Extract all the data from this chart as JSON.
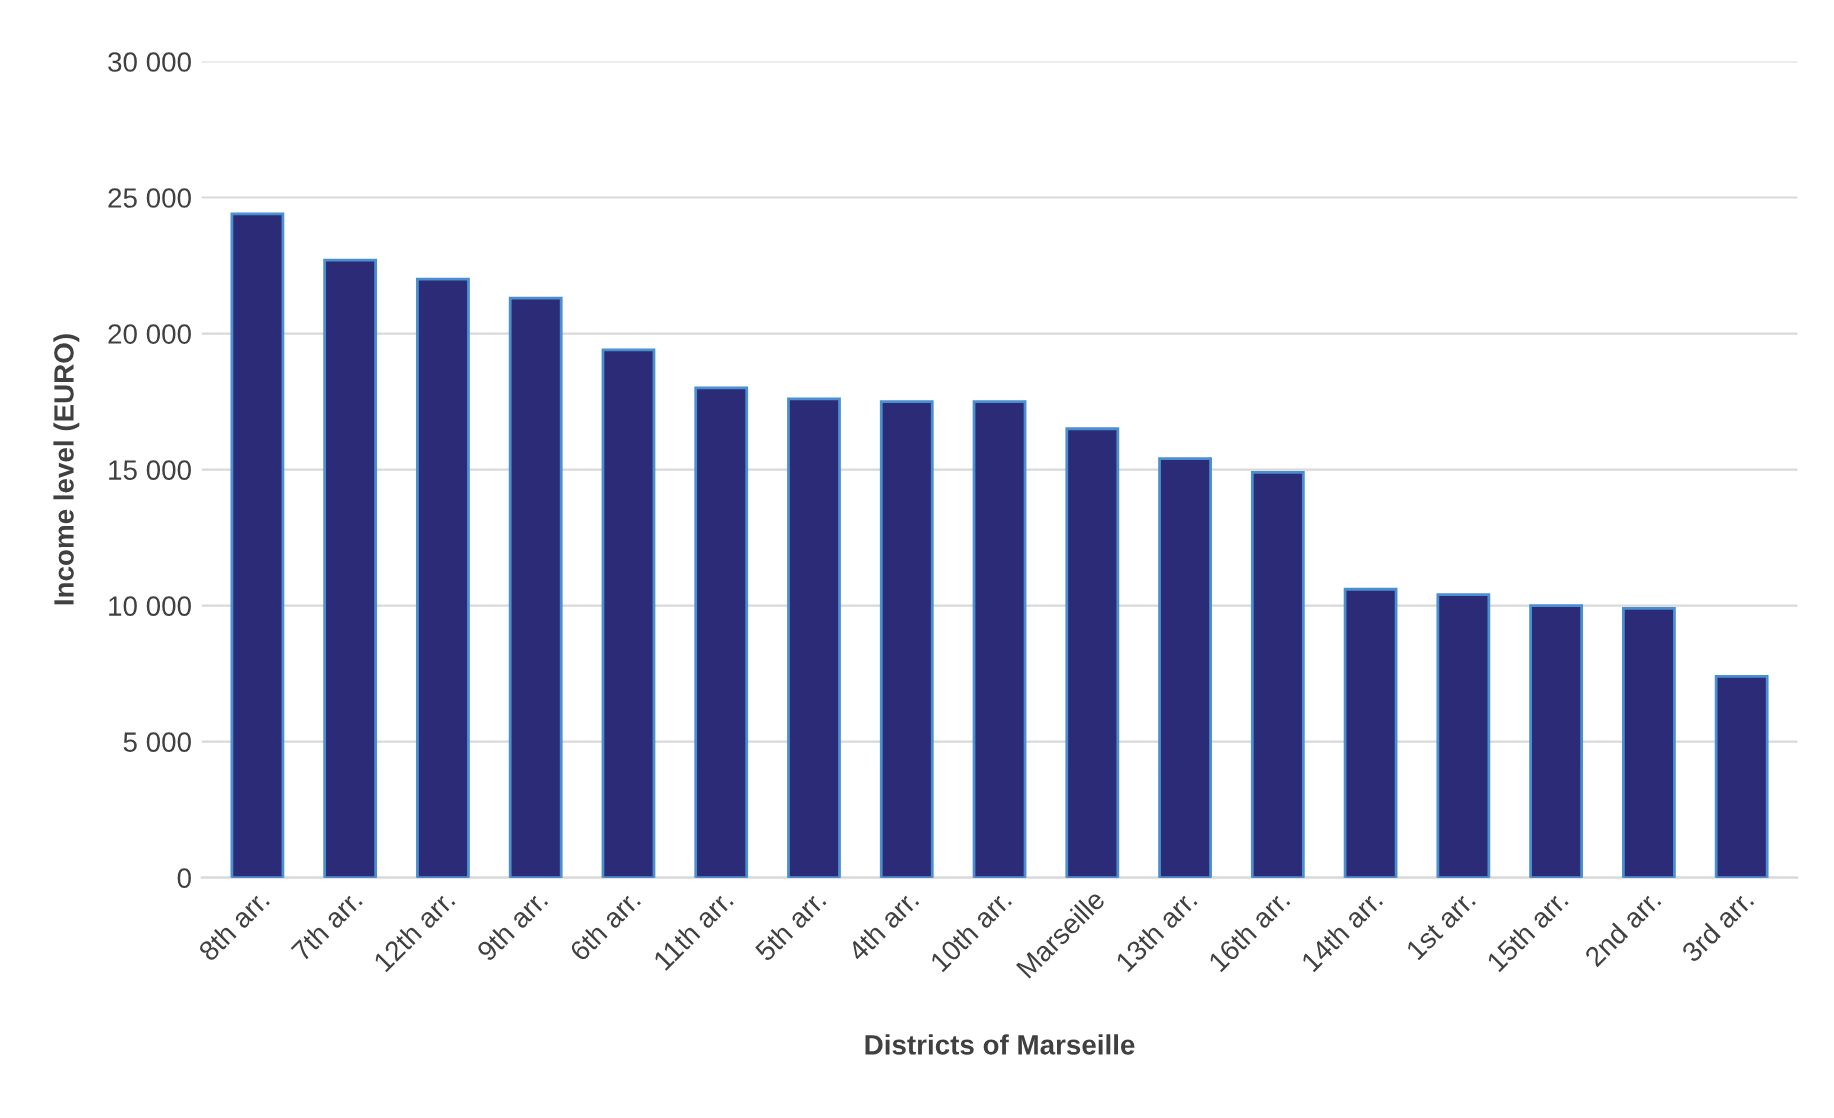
{
  "chart_data": {
    "type": "bar",
    "xlabel": "Districts of Marseille",
    "ylabel": "Income level (EURO)",
    "categories": [
      "8th arr.",
      "7th arr.",
      "12th arr.",
      "9th arr.",
      "6th arr.",
      "11th arr.",
      "5th arr.",
      "4th arr.",
      "10th arr.",
      "Marseille",
      "13th arr.",
      "16th arr.",
      "14th arr.",
      "1st arr.",
      "15th arr.",
      "2nd arr.",
      "3rd arr."
    ],
    "values": [
      24400,
      22700,
      22000,
      21300,
      19400,
      18000,
      17600,
      17500,
      17500,
      16500,
      15400,
      14900,
      10600,
      10400,
      10000,
      9900,
      7400
    ],
    "color": "#2b2b78",
    "ylim": [
      0,
      30000
    ],
    "yticks": [
      {
        "value": 0,
        "label": "0"
      },
      {
        "value": 5000,
        "label": "5 000"
      },
      {
        "value": 10000,
        "label": "10 000"
      },
      {
        "value": 15000,
        "label": "15 000"
      },
      {
        "value": 20000,
        "label": "20 000"
      },
      {
        "value": 25000,
        "label": "25 000"
      },
      {
        "value": 30000,
        "label": "30 000"
      }
    ],
    "grid": "y"
  }
}
